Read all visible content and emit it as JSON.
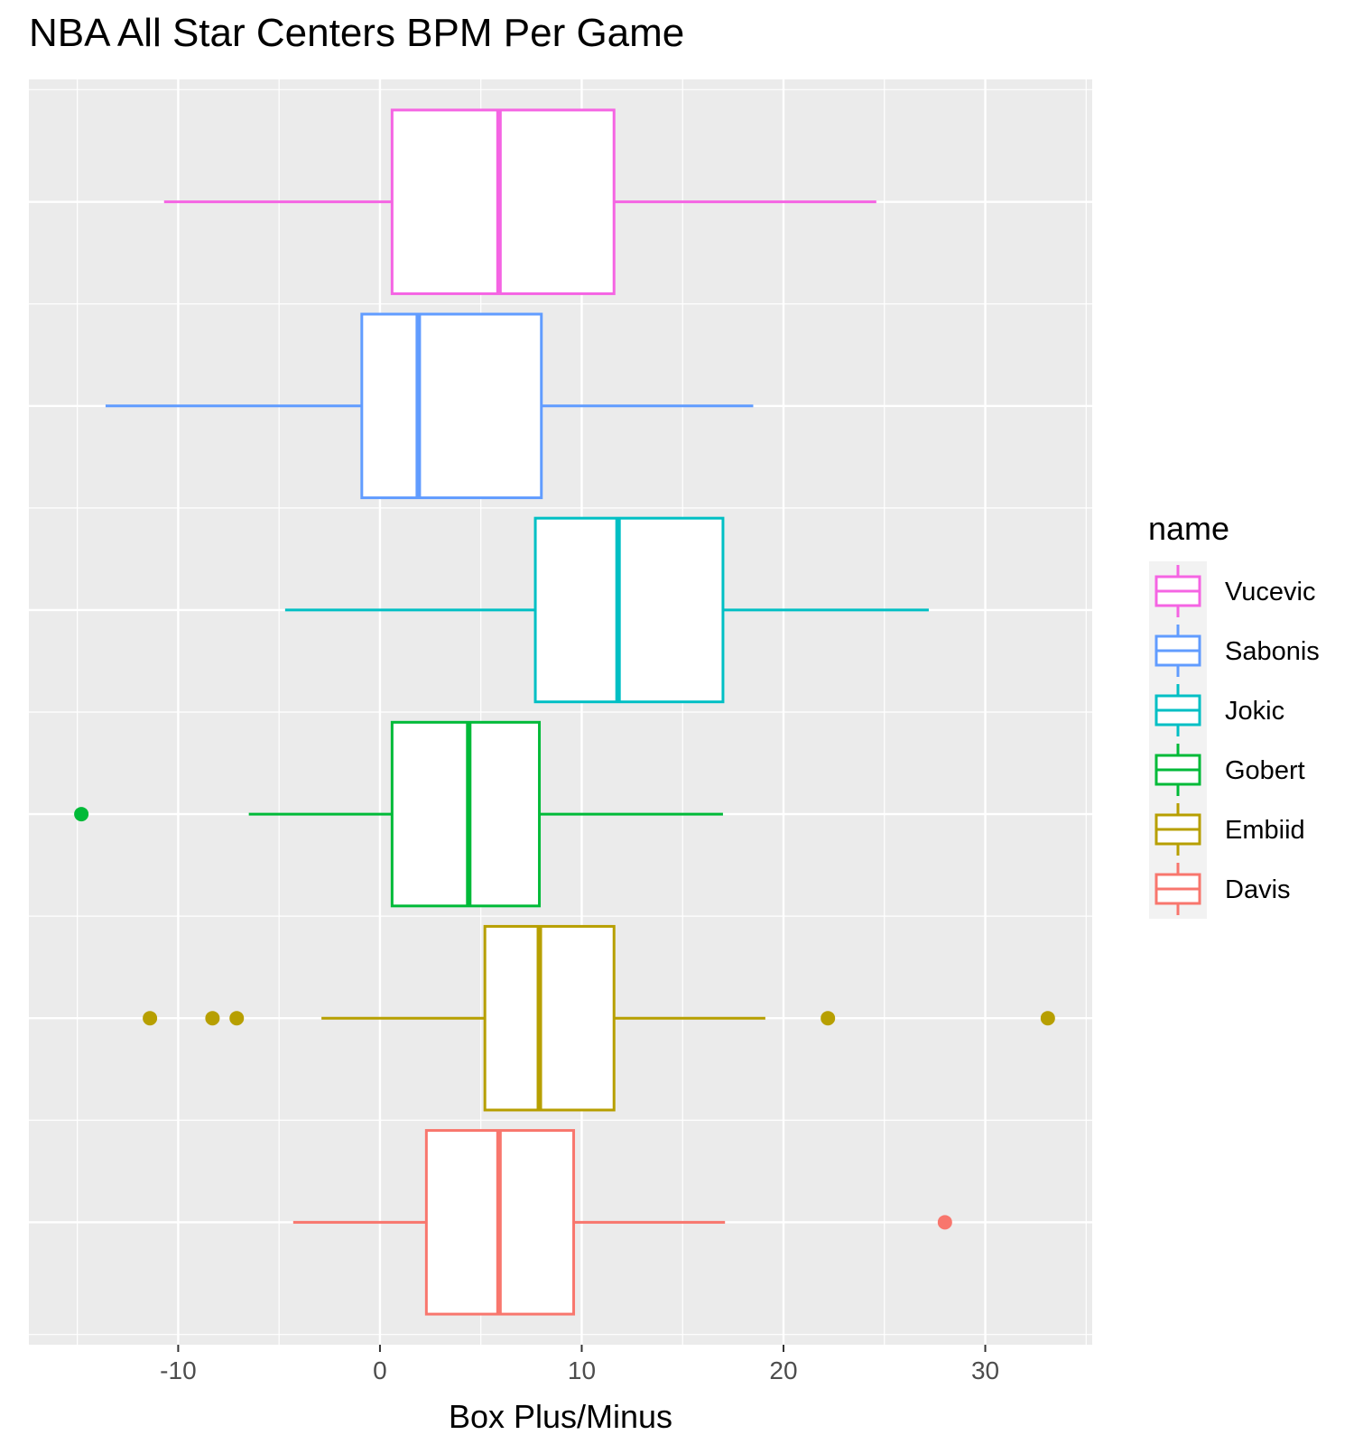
{
  "chart_data": {
    "type": "boxplot",
    "orientation": "horizontal",
    "title": "NBA All Star Centers BPM Per Game",
    "xlabel": "Box Plus/Minus",
    "ylabel": "",
    "xlim": [
      -17.4,
      35.3
    ],
    "xticks": [
      -10,
      0,
      10,
      20,
      30
    ],
    "xtick_labels": [
      "-10",
      "0",
      "10",
      "20",
      "30"
    ],
    "grid": true,
    "legend": {
      "title": "name",
      "position": "right"
    },
    "series": [
      {
        "name": "Vucevic",
        "color": "#F564E3",
        "whisker_low": -10.7,
        "q1": 0.6,
        "median": 5.9,
        "q3": 11.6,
        "whisker_high": 24.6,
        "outliers": []
      },
      {
        "name": "Sabonis",
        "color": "#619CFF",
        "whisker_low": -13.6,
        "q1": -0.9,
        "median": 1.9,
        "q3": 8.0,
        "whisker_high": 18.5,
        "outliers": []
      },
      {
        "name": "Jokic",
        "color": "#00BFC4",
        "whisker_low": -4.7,
        "q1": 7.7,
        "median": 11.8,
        "q3": 17.0,
        "whisker_high": 27.2,
        "outliers": []
      },
      {
        "name": "Gobert",
        "color": "#00BA38",
        "whisker_low": -6.5,
        "q1": 0.6,
        "median": 4.4,
        "q3": 7.9,
        "whisker_high": 17.0,
        "outliers": [
          -14.8
        ]
      },
      {
        "name": "Embiid",
        "color": "#B79F00",
        "whisker_low": -2.9,
        "q1": 5.2,
        "median": 7.9,
        "q3": 11.6,
        "whisker_high": 19.1,
        "outliers": [
          -11.4,
          -8.3,
          -7.1,
          22.2,
          33.1
        ]
      },
      {
        "name": "Davis",
        "color": "#F8766D",
        "whisker_low": -4.3,
        "q1": 2.3,
        "median": 5.9,
        "q3": 9.6,
        "whisker_high": 17.1,
        "outliers": [
          28.0
        ]
      }
    ]
  }
}
